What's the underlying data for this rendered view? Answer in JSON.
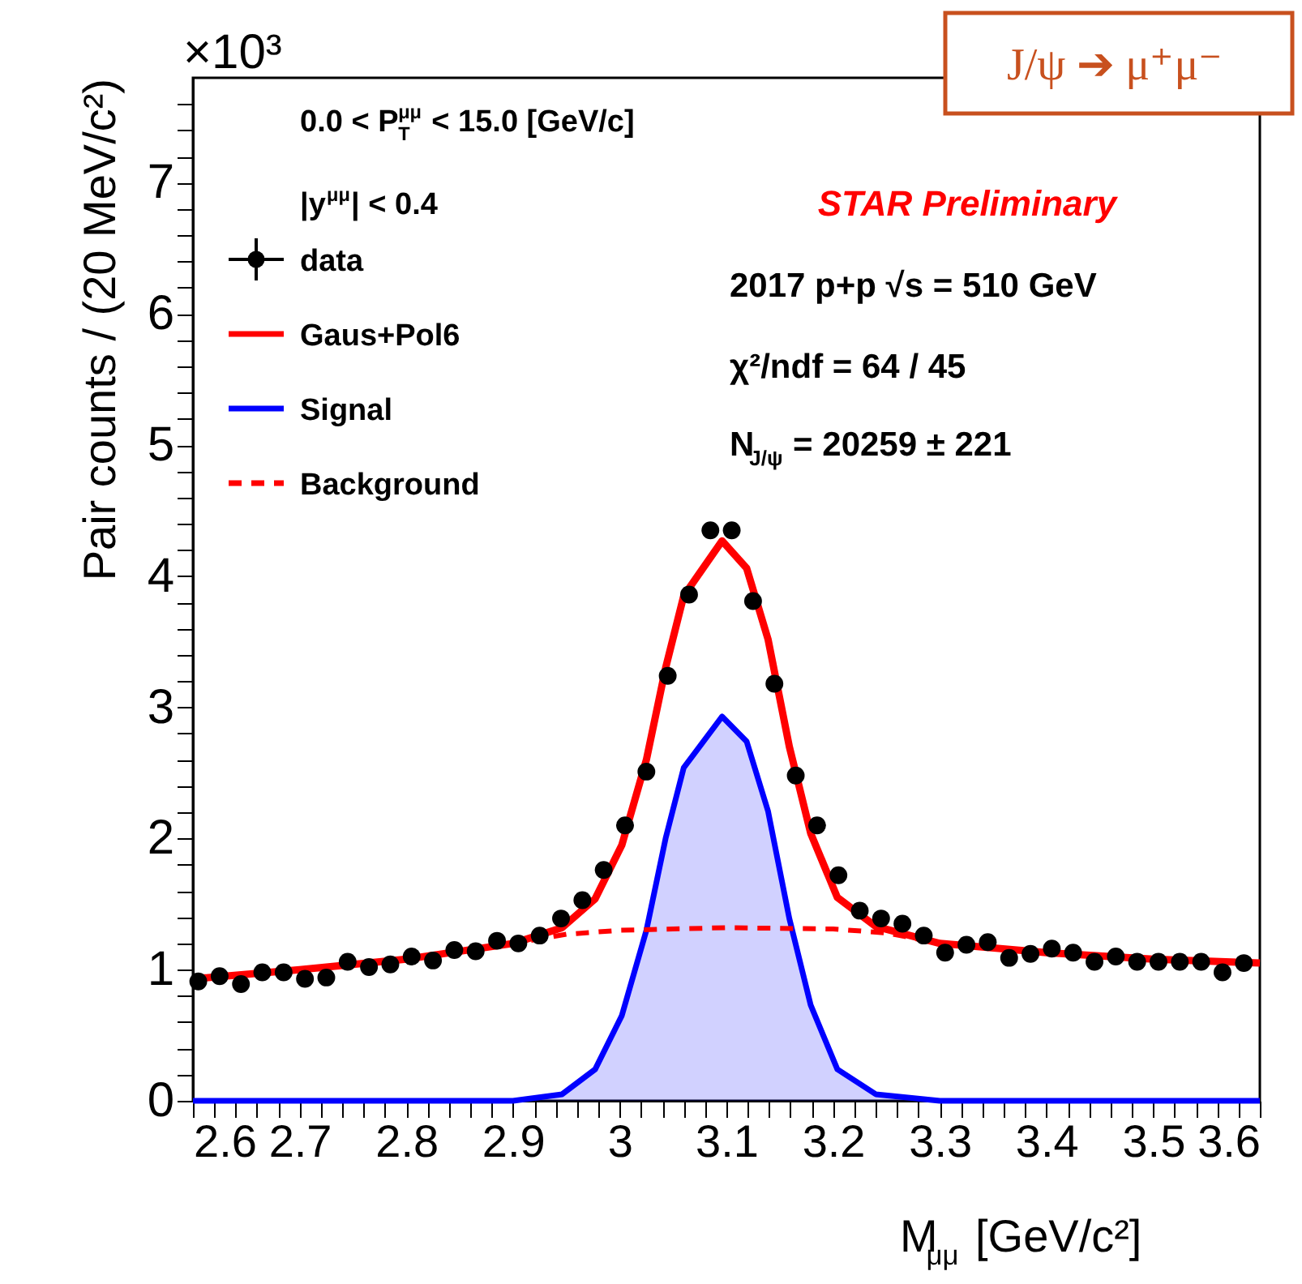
{
  "chart_data": {
    "type": "scatter",
    "xlabel": "M$_{μμ}$ [GeV/c²]",
    "ylabel": "Pair counts / (20 MeV/c²)",
    "xlim": [
      2.6,
      3.6
    ],
    "ylim": [
      0,
      7.8
    ],
    "xticks": [
      2.6,
      {
        "value": 2.62,
        "label": null
      },
      {
        "value": 2.64,
        "label": null
      },
      {
        "value": 2.66,
        "label": null
      },
      {
        "value": 2.68,
        "label": null
      },
      2.7,
      {
        "value": 2.72,
        "label": null
      },
      {
        "value": 2.74,
        "label": null
      },
      {
        "value": 2.76,
        "label": null
      },
      {
        "value": 2.78,
        "label": null
      },
      2.8,
      {
        "value": 2.82,
        "label": null
      },
      {
        "value": 2.84,
        "label": null
      },
      {
        "value": 2.86,
        "label": null
      },
      {
        "value": 2.88,
        "label": null
      },
      2.9,
      {
        "value": 2.92,
        "label": null
      },
      {
        "value": 2.94,
        "label": null
      },
      {
        "value": 2.96,
        "label": null
      },
      {
        "value": 2.98,
        "label": null
      },
      3,
      {
        "value": 3.02,
        "label": null
      },
      {
        "value": 3.04,
        "label": null
      },
      {
        "value": 3.06,
        "label": null
      },
      {
        "value": 3.08,
        "label": null
      },
      3.1,
      {
        "value": 3.12,
        "label": null
      },
      {
        "value": 3.14,
        "label": null
      },
      {
        "value": 3.16,
        "label": null
      },
      {
        "value": 3.18,
        "label": null
      },
      3.2,
      {
        "value": 3.22,
        "label": null
      },
      {
        "value": 3.24,
        "label": null
      },
      {
        "value": 3.26,
        "label": null
      },
      {
        "value": 3.28,
        "label": null
      },
      3.3,
      {
        "value": 3.32,
        "label": null
      },
      {
        "value": 3.34,
        "label": null
      },
      {
        "value": 3.36,
        "label": null
      },
      {
        "value": 3.38,
        "label": null
      },
      3.4,
      {
        "value": 3.42,
        "label": null
      },
      {
        "value": 3.44,
        "label": null
      },
      {
        "value": 3.46,
        "label": null
      },
      {
        "value": 3.48,
        "label": null
      },
      3.5,
      {
        "value": 3.52,
        "label": null
      },
      {
        "value": 3.54,
        "label": null
      },
      {
        "value": 3.56,
        "label": null
      },
      {
        "value": 3.58,
        "label": null
      },
      3.6
    ],
    "yticks": [
      0,
      {
        "value": 0.2,
        "label": null
      },
      {
        "value": 0.4,
        "label": null
      },
      {
        "value": 0.6,
        "label": null
      },
      {
        "value": 0.8,
        "label": null
      },
      1,
      {
        "value": 1.2,
        "label": null
      },
      {
        "value": 1.4,
        "label": null
      },
      {
        "value": 1.6,
        "label": null
      },
      {
        "value": 1.8,
        "label": null
      },
      2,
      {
        "value": 2.2,
        "label": null
      },
      {
        "value": 2.4,
        "label": null
      },
      {
        "value": 2.6,
        "label": null
      },
      {
        "value": 2.8,
        "label": null
      },
      3,
      {
        "value": 3.2,
        "label": null
      },
      {
        "value": 3.4,
        "label": null
      },
      {
        "value": 3.6,
        "label": null
      },
      {
        "value": 3.8,
        "label": null
      },
      4,
      {
        "value": 4.2,
        "label": null
      },
      {
        "value": 4.4,
        "label": null
      },
      {
        "value": 4.6,
        "label": null
      },
      {
        "value": 4.8,
        "label": null
      },
      5,
      {
        "value": 5.2,
        "label": null
      },
      {
        "value": 5.4,
        "label": null
      },
      {
        "value": 5.6,
        "label": null
      },
      {
        "value": 5.8,
        "label": null
      },
      6,
      {
        "value": 6.2,
        "label": null
      },
      {
        "value": 6.4,
        "label": null
      },
      {
        "value": 6.6,
        "label": null
      },
      {
        "value": 6.8,
        "label": null
      },
      7,
      {
        "value": 7.2,
        "label": null
      },
      {
        "value": 7.4,
        "label": null
      },
      {
        "value": 7.6,
        "label": null
      }
    ],
    "grid": false,
    "legend": "top left",
    "series": [
      {
        "name": "data",
        "marker": "circle",
        "color": "#000000",
        "x": [
          2.605,
          2.625,
          2.645,
          2.665,
          2.685,
          2.705,
          2.725,
          2.745,
          2.765,
          2.785,
          2.805,
          2.825,
          2.845,
          2.865,
          2.885,
          2.905,
          2.925,
          2.945,
          2.965,
          2.985,
          3.005,
          3.025,
          3.045,
          3.065,
          3.085,
          3.105,
          3.125,
          3.145,
          3.165,
          3.185,
          3.205,
          3.225,
          3.245,
          3.265,
          3.285,
          3.305,
          3.325,
          3.345,
          3.365,
          3.385,
          3.405,
          3.425,
          3.445,
          3.465,
          3.485,
          3.505,
          3.525,
          3.545,
          3.565,
          3.585
        ],
        "values": [
          0.91,
          0.95,
          0.89,
          0.98,
          0.98,
          0.93,
          0.94,
          1.06,
          1.02,
          1.04,
          1.1,
          1.07,
          1.15,
          1.14,
          1.22,
          1.2,
          1.26,
          1.39,
          1.53,
          1.76,
          2.1,
          2.51,
          3.24,
          3.86,
          4.35,
          4.35,
          3.81,
          3.18,
          2.48,
          2.1,
          1.72,
          1.45,
          1.39,
          1.35,
          1.26,
          1.13,
          1.19,
          1.21,
          1.09,
          1.12,
          1.16,
          1.13,
          1.06,
          1.1,
          1.06,
          1.06,
          1.06,
          1.06,
          0.98,
          1.05
        ]
      },
      {
        "name": "Gaus+Pol6",
        "type": "line",
        "line_style": "solid",
        "color": "#ff0000",
        "x": [
          2.6,
          2.7,
          2.8,
          2.9,
          2.946,
          2.977,
          3.002,
          3.025,
          3.043,
          3.06,
          3.096,
          3.119,
          3.139,
          3.159,
          3.179,
          3.204,
          3.24,
          3.3,
          3.4,
          3.5,
          3.6
        ],
        "values": [
          0.93,
          1.0,
          1.08,
          1.2,
          1.32,
          1.54,
          1.95,
          2.6,
          3.3,
          3.85,
          4.27,
          4.06,
          3.52,
          2.7,
          2.04,
          1.55,
          1.33,
          1.2,
          1.13,
          1.08,
          1.05
        ]
      },
      {
        "name": "Signal",
        "type": "area",
        "line_style": "solid",
        "color": "#0000ff",
        "x": [
          2.6,
          2.9,
          2.946,
          2.977,
          3.002,
          3.025,
          3.043,
          3.06,
          3.096,
          3.119,
          3.139,
          3.159,
          3.179,
          3.204,
          3.24,
          3.3,
          3.6
        ],
        "values": [
          0,
          0,
          0.05,
          0.24,
          0.65,
          1.3,
          2.0,
          2.54,
          2.93,
          2.74,
          2.21,
          1.39,
          0.73,
          0.24,
          0.05,
          0,
          0
        ]
      },
      {
        "name": "Background",
        "type": "line",
        "line_style": "dashed",
        "color": "#ff0000",
        "x": [
          2.6,
          2.7,
          2.8,
          2.9,
          2.95,
          3.0,
          3.1,
          3.2,
          3.25,
          3.3,
          3.4,
          3.5,
          3.6
        ],
        "values": [
          0.93,
          1.0,
          1.08,
          1.2,
          1.27,
          1.3,
          1.32,
          1.31,
          1.28,
          1.2,
          1.13,
          1.08,
          1.05
        ]
      }
    ],
    "annotations": [
      "×10³",
      "0.0 < P$^{μμ}$$_{T}$ < 15.0 [GeV/c]",
      "|y$^{μμ}$| < 0.4",
      "STAR Preliminary",
      "2017 p+p  √s = 510 GeV",
      "χ²/ndf = 64 / 45",
      "N$_{J/ψ}$ = 20259 ± 221",
      "J/ψ ➔ μ⁺μ⁻"
    ]
  }
}
